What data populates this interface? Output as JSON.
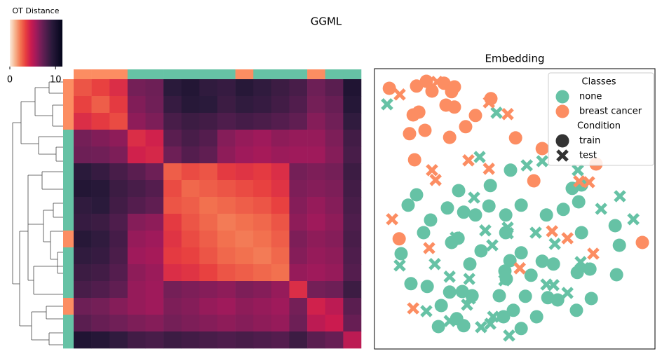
{
  "title": "GGML",
  "chart_data": [
    {
      "type": "heatmap",
      "colorbar_label": "OT Distance",
      "clim": [
        0,
        11.5
      ],
      "cticks": [
        0,
        10
      ],
      "cmap": [
        "#faebdd",
        "#f6b48e",
        "#f37651",
        "#e83f3f",
        "#cb1b4f",
        "#a11a5b",
        "#701f57",
        "#4c1d4b",
        "#2a1a3b",
        "#160f2b",
        "#03051a"
      ],
      "class_colors": [
        "#fc8d62",
        "#fc8d62",
        "#fc8d62",
        "#66c2a5",
        "#66c2a5",
        "#66c2a5",
        "#66c2a5",
        "#66c2a5",
        "#66c2a5",
        "#fc8d62",
        "#66c2a5",
        "#66c2a5",
        "#66c2a5",
        "#fc8d62",
        "#66c2a5",
        "#66c2a5"
      ],
      "values": [
        [
          3.0,
          3.4,
          4.0,
          6.8,
          7.0,
          9.2,
          9.6,
          9.0,
          8.8,
          9.4,
          9.0,
          8.6,
          8.2,
          7.0,
          7.6,
          9.8
        ],
        [
          3.4,
          2.8,
          3.6,
          6.5,
          6.9,
          8.8,
          9.4,
          9.2,
          8.6,
          9.0,
          8.8,
          8.4,
          7.9,
          6.8,
          7.2,
          9.5
        ],
        [
          4.0,
          3.6,
          3.2,
          6.2,
          6.6,
          8.2,
          8.6,
          8.4,
          8.0,
          8.3,
          8.1,
          7.8,
          7.4,
          6.4,
          6.9,
          9.0
        ],
        [
          6.8,
          6.5,
          6.2,
          4.0,
          4.4,
          7.6,
          8.2,
          7.8,
          6.4,
          6.0,
          5.8,
          6.2,
          6.0,
          6.0,
          6.6,
          8.4
        ],
        [
          7.0,
          6.9,
          6.6,
          4.4,
          4.2,
          7.0,
          7.8,
          7.4,
          6.2,
          5.8,
          5.6,
          5.9,
          5.8,
          5.8,
          6.4,
          8.2
        ],
        [
          9.2,
          8.8,
          8.2,
          7.6,
          7.0,
          2.8,
          3.2,
          3.0,
          3.6,
          3.8,
          3.6,
          4.0,
          6.8,
          6.6,
          6.8,
          8.6
        ],
        [
          9.6,
          9.4,
          8.6,
          8.2,
          7.8,
          3.2,
          2.6,
          2.8,
          3.0,
          3.2,
          3.4,
          3.8,
          6.6,
          6.4,
          6.6,
          8.4
        ],
        [
          9.0,
          9.2,
          8.4,
          7.8,
          7.4,
          3.0,
          2.8,
          2.4,
          2.6,
          2.8,
          3.0,
          3.4,
          6.4,
          6.0,
          6.4,
          8.2
        ],
        [
          8.8,
          8.6,
          8.0,
          6.4,
          6.2,
          3.6,
          3.0,
          2.6,
          2.2,
          2.4,
          2.6,
          3.0,
          6.2,
          5.8,
          6.2,
          8.0
        ],
        [
          9.4,
          9.0,
          8.3,
          6.0,
          5.8,
          3.8,
          3.2,
          2.8,
          2.4,
          2.2,
          2.4,
          2.8,
          6.6,
          6.2,
          6.4,
          8.2
        ],
        [
          9.0,
          8.8,
          8.1,
          5.8,
          5.6,
          3.6,
          3.4,
          3.0,
          2.6,
          2.4,
          2.2,
          2.6,
          6.4,
          6.0,
          6.2,
          8.0
        ],
        [
          8.6,
          8.4,
          7.8,
          6.2,
          5.9,
          4.0,
          3.8,
          3.4,
          3.0,
          2.8,
          2.6,
          2.4,
          6.0,
          5.8,
          6.0,
          7.8
        ],
        [
          8.2,
          7.9,
          7.4,
          6.0,
          5.8,
          6.8,
          6.6,
          6.4,
          6.2,
          6.6,
          6.4,
          6.0,
          4.0,
          6.8,
          7.0,
          8.6
        ],
        [
          7.0,
          6.8,
          6.4,
          6.0,
          5.8,
          6.6,
          6.4,
          6.0,
          5.8,
          6.2,
          6.0,
          5.8,
          6.8,
          4.4,
          5.0,
          7.6
        ],
        [
          7.6,
          7.2,
          6.9,
          6.6,
          6.4,
          6.8,
          6.6,
          6.4,
          6.2,
          6.4,
          6.2,
          6.0,
          7.0,
          5.0,
          4.6,
          7.2
        ],
        [
          9.8,
          9.5,
          9.0,
          8.4,
          8.2,
          8.6,
          8.4,
          8.2,
          8.0,
          8.2,
          8.0,
          7.8,
          8.6,
          7.6,
          7.2,
          5.0
        ]
      ]
    },
    {
      "type": "scatter",
      "title": "Embedding",
      "xlim": [
        0,
        100
      ],
      "ylim": [
        0,
        100
      ],
      "legend_loc": "upper right",
      "classes_title": "Classes",
      "conditions_title": "Condition",
      "conditions": [
        {
          "name": "train",
          "marker": "circle",
          "color": "#333333"
        },
        {
          "name": "test",
          "marker": "cross",
          "color": "#333333"
        }
      ],
      "series": [
        {
          "name": "none",
          "color": "#66c2a5",
          "groups": [
            {
              "x": [
                15,
                12,
                30,
                41.3,
                48.5,
                70.5,
                73.8,
                72.8,
                26,
                31.8,
                36,
                40.8,
                52.3,
                46.8,
                61.3,
                67.3,
                20,
                17.5,
                9.5,
                27.5,
                29.8,
                46.8,
                73.8,
                85.8,
                87.3,
                38,
                52.3,
                34,
                48.3,
                59.8,
                63.8,
                46.5,
                47,
                55.8,
                72.3,
                76.8,
                86.3,
                13,
                18.8,
                26.8,
                31.3,
                34.8,
                44.5,
                53.8,
                61.8,
                65.3,
                77.3,
                23.8,
                49.5,
                46,
                57.8,
                72,
                29.3,
                22.8,
                31.8,
                52.3
              ],
              "y": [
                55,
                51.3,
                56.5,
                58.3,
                63.8,
                57.3,
                58.5,
                52.5,
                50.3,
                48.8,
                47.8,
                51,
                51.3,
                47.8,
                47.8,
                49.8,
                46,
                41.5,
                34,
                38,
                39.5,
                41.5,
                41.5,
                44,
                37,
                35,
                34.3,
                30.3,
                31.5,
                31.3,
                30.3,
                27.8,
                25,
                26.3,
                27.3,
                28.5,
                26.5,
                23.3,
                22.3,
                20.3,
                20.5,
                19,
                19,
                18.8,
                18.3,
                17.5,
                18,
                15.5,
                13.8,
                11.5,
                11.5,
                13.8,
                10.8,
                8,
                8.3,
                7.3
              ]
            },
            {
              "x": [
                4.5,
                43.5,
                37.5,
                54.3,
                59.8,
                72.5,
                87.5,
                80.8,
                92.3,
                35.5,
                39.5,
                47.5,
                47.5,
                57.5,
                29,
                42,
                64.3,
                9,
                21.5,
                26.8,
                33.8,
                46.3,
                73.5,
                74.5,
                61.3,
                63.8,
                68.8,
                34,
                33,
                18.5,
                26.8,
                42.3,
                41.3,
                38,
                48
              ],
              "y": [
                87.3,
                84.3,
                68.5,
                65.5,
                67,
                63.8,
                54.5,
                50,
                46.3,
                54,
                42.3,
                43.3,
                41.3,
                41.5,
                39.8,
                37,
                37.5,
                29.8,
                30.3,
                25.8,
                25,
                24.5,
                31,
                28.8,
                23,
                22.8,
                20,
                18,
                15.8,
                13.5,
                10,
                11.5,
                9,
                7.8,
                4.8
              ]
            }
          ]
        },
        {
          "name": "breast cancer",
          "color": "#fc8d62",
          "groups": [
            {
              "x": [
                5.3,
                15,
                18.5,
                20.5,
                24.8,
                28.5,
                27.5,
                41.5,
                15.8,
                13.8,
                25.5,
                28.5,
                36,
                32.5,
                12.5,
                18,
                26.8,
                50.3,
                59.8,
                14.3,
                79,
                56.8,
                8.8,
                95.5
              ],
              "y": [
                93,
                93.8,
                95.5,
                92,
                94.8,
                93.5,
                91.8,
                89.3,
                84.5,
                83.5,
                87,
                86.3,
                83.3,
                79.3,
                76.8,
                78,
                75.5,
                75.3,
                71.5,
                67.5,
                66,
                60,
                39.3,
                38
              ]
            },
            {
              "x": [
                9,
                22.3,
                40.8,
                47.5,
                33.5,
                20.5,
                21.8,
                40.8,
                73,
                76.5,
                6.3,
                63.3,
                68.8,
                19.5,
                78,
                51.8,
                13.8
              ],
              "y": [
                90.8,
                95.3,
                88,
                83.8,
                67.3,
                63.8,
                60.3,
                64.3,
                59.8,
                59.5,
                46.3,
                42,
                39.5,
                36,
                34,
                28.8,
                14.5
              ]
            }
          ]
        }
      ]
    }
  ]
}
